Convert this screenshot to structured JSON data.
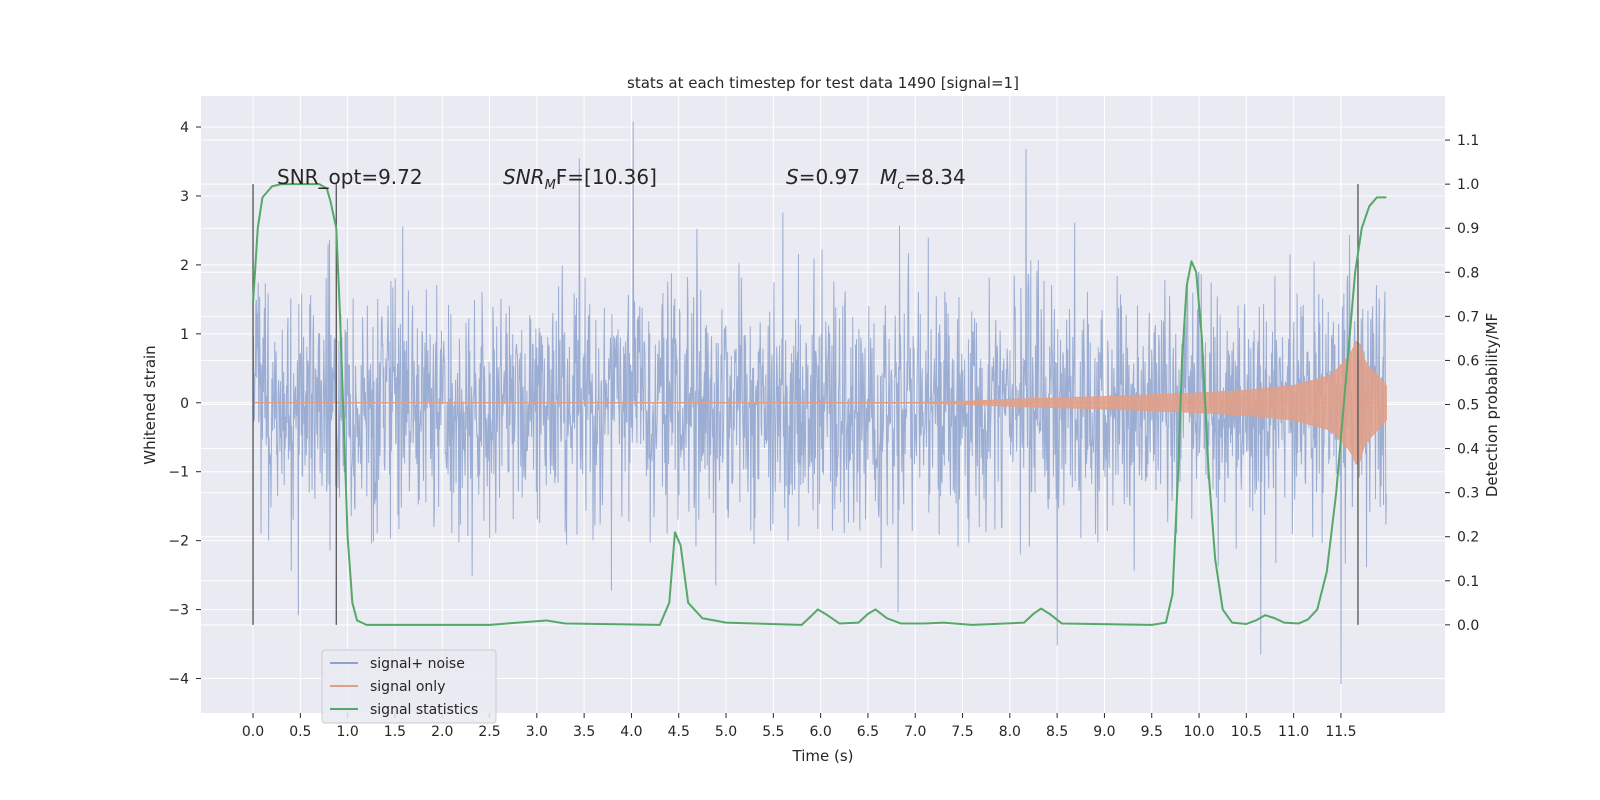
{
  "chart_data": {
    "type": "line",
    "title": "stats at each timestep for test data 1490 [signal=1]",
    "xlabel": "Time (s)",
    "ylabel": "Whitened strain",
    "ylabel_right": "Detection probability/MF",
    "xlim": [
      -0.55,
      12.6
    ],
    "ylim": [
      -4.5,
      4.45
    ],
    "ylim_right": [
      -0.2,
      1.2
    ],
    "xticks": [
      0.0,
      0.5,
      1.0,
      1.5,
      2.0,
      2.5,
      3.0,
      3.5,
      4.0,
      4.5,
      5.0,
      5.5,
      6.0,
      6.5,
      7.0,
      7.5,
      8.0,
      8.5,
      9.0,
      9.5,
      10.0,
      10.5,
      11.0,
      11.5
    ],
    "yticks": [
      -4,
      -3,
      -2,
      -1,
      0,
      1,
      2,
      3,
      4
    ],
    "yticks_right": [
      0.0,
      0.1,
      0.2,
      0.3,
      0.4,
      0.5,
      0.6,
      0.7,
      0.8,
      0.9,
      1.0,
      1.1
    ],
    "grid": true,
    "legend_position": "lower-left",
    "annotations": {
      "snr_opt": "SNR_opt=9.72",
      "snr_mf_sym": "SNR",
      "snr_mf_sub": "M",
      "snr_mf_rest": "F=[10.36]",
      "s_sym": "S",
      "s_val": "=0.97",
      "mc_sym": "M",
      "mc_sub": "c",
      "mc_val": "=8.34"
    },
    "vertical_markers": [
      0.0,
      0.88,
      11.68
    ],
    "series": [
      {
        "name": "signal+ noise",
        "color": "#8da2cc",
        "description_kind": "noise",
        "x_range": [
          0.0,
          11.98
        ],
        "envelope": {
          "typical_amplitude": 1.3,
          "peak_amplitude": 4.0
        },
        "notable_peaks": [
          {
            "x": 4.02,
            "y": 4.08
          },
          {
            "x": 3.45,
            "y": 3.55
          },
          {
            "x": 11.5,
            "y": -4.08
          },
          {
            "x": 8.5,
            "y": -3.52
          },
          {
            "x": 10.65,
            "y": -3.65
          },
          {
            "x": 0.48,
            "y": -3.08
          },
          {
            "x": 8.17,
            "y": 3.68
          }
        ]
      },
      {
        "name": "signal only",
        "color": "#e39f86",
        "description_kind": "chirp",
        "x_range": [
          0.0,
          11.98
        ],
        "envelope_points": [
          [
            0.0,
            0.0
          ],
          [
            7.0,
            0.005
          ],
          [
            7.5,
            0.02
          ],
          [
            8.0,
            0.05
          ],
          [
            9.0,
            0.09
          ],
          [
            10.0,
            0.14
          ],
          [
            10.5,
            0.18
          ],
          [
            11.0,
            0.25
          ],
          [
            11.4,
            0.4
          ],
          [
            11.6,
            0.7
          ],
          [
            11.68,
            0.95
          ],
          [
            11.75,
            0.6
          ],
          [
            11.98,
            0.25
          ]
        ]
      },
      {
        "name": "signal statistics",
        "color": "#55a868",
        "axis": "right",
        "points": [
          [
            0.0,
            0.73
          ],
          [
            0.05,
            0.9
          ],
          [
            0.1,
            0.97
          ],
          [
            0.2,
            0.995
          ],
          [
            0.3,
            1.0
          ],
          [
            0.7,
            1.0
          ],
          [
            0.78,
            0.99
          ],
          [
            0.82,
            0.96
          ],
          [
            0.88,
            0.9
          ],
          [
            0.92,
            0.7
          ],
          [
            0.96,
            0.45
          ],
          [
            1.0,
            0.2
          ],
          [
            1.05,
            0.05
          ],
          [
            1.1,
            0.01
          ],
          [
            1.2,
            0.0
          ],
          [
            2.5,
            0.0
          ],
          [
            2.8,
            0.005
          ],
          [
            3.1,
            0.01
          ],
          [
            3.3,
            0.003
          ],
          [
            4.3,
            0.0
          ],
          [
            4.4,
            0.05
          ],
          [
            4.46,
            0.21
          ],
          [
            4.52,
            0.18
          ],
          [
            4.6,
            0.05
          ],
          [
            4.75,
            0.015
          ],
          [
            5.0,
            0.005
          ],
          [
            5.8,
            0.0
          ],
          [
            5.9,
            0.02
          ],
          [
            5.97,
            0.035
          ],
          [
            6.05,
            0.025
          ],
          [
            6.2,
            0.003
          ],
          [
            6.4,
            0.005
          ],
          [
            6.5,
            0.025
          ],
          [
            6.58,
            0.035
          ],
          [
            6.7,
            0.015
          ],
          [
            6.85,
            0.003
          ],
          [
            7.1,
            0.003
          ],
          [
            7.3,
            0.005
          ],
          [
            7.6,
            0.0
          ],
          [
            8.15,
            0.005
          ],
          [
            8.25,
            0.025
          ],
          [
            8.33,
            0.037
          ],
          [
            8.42,
            0.025
          ],
          [
            8.55,
            0.003
          ],
          [
            9.5,
            0.0
          ],
          [
            9.65,
            0.005
          ],
          [
            9.72,
            0.07
          ],
          [
            9.78,
            0.35
          ],
          [
            9.82,
            0.6
          ],
          [
            9.87,
            0.77
          ],
          [
            9.92,
            0.825
          ],
          [
            9.97,
            0.8
          ],
          [
            10.03,
            0.65
          ],
          [
            10.1,
            0.35
          ],
          [
            10.17,
            0.15
          ],
          [
            10.25,
            0.035
          ],
          [
            10.35,
            0.005
          ],
          [
            10.5,
            0.002
          ],
          [
            10.6,
            0.01
          ],
          [
            10.7,
            0.022
          ],
          [
            10.8,
            0.015
          ],
          [
            10.9,
            0.005
          ],
          [
            11.05,
            0.003
          ],
          [
            11.15,
            0.012
          ],
          [
            11.25,
            0.035
          ],
          [
            11.35,
            0.12
          ],
          [
            11.45,
            0.3
          ],
          [
            11.55,
            0.55
          ],
          [
            11.65,
            0.8
          ],
          [
            11.72,
            0.9
          ],
          [
            11.8,
            0.95
          ],
          [
            11.88,
            0.97
          ],
          [
            11.98,
            0.97
          ]
        ]
      }
    ]
  },
  "legend": {
    "items": [
      {
        "label": "signal+ noise",
        "color": "#8da2cc"
      },
      {
        "label": "signal only",
        "color": "#e39f86"
      },
      {
        "label": "signal statistics",
        "color": "#55a868"
      }
    ]
  },
  "colors": {
    "plot_background": "#eaeaf2",
    "grid": "#ffffff",
    "marker_line": "#555555"
  }
}
